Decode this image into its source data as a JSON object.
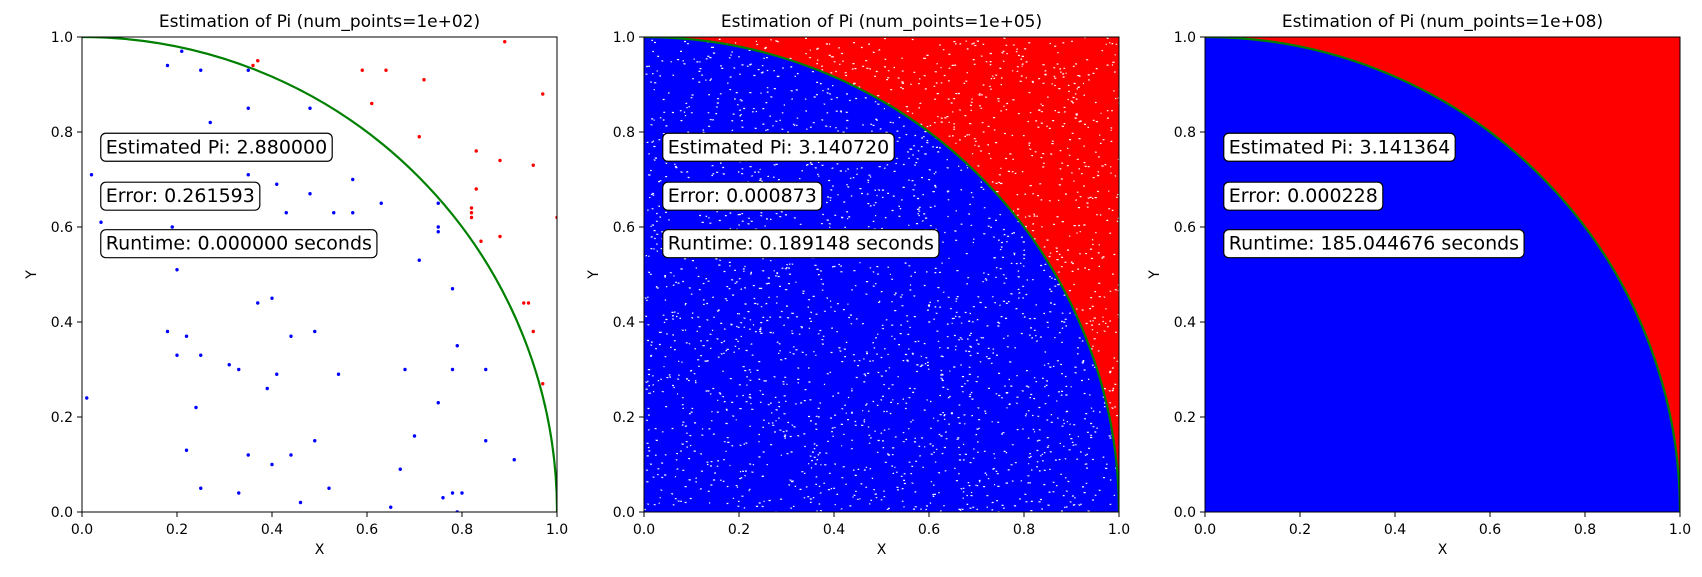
{
  "chart_data": [
    {
      "type": "scatter",
      "title": "Estimation of Pi (num_points=1e+02)",
      "xlabel": "X",
      "ylabel": "Y",
      "xlim": [
        0,
        1
      ],
      "ylim": [
        0,
        1
      ],
      "xticks": [
        "0.0",
        "0.2",
        "0.4",
        "0.6",
        "0.8",
        "1.0"
      ],
      "yticks": [
        "0.0",
        "0.2",
        "0.4",
        "0.6",
        "0.8",
        "1.0"
      ],
      "grid": false,
      "boundary_curve": "quarter circle x^2 + y^2 = 1",
      "colors": {
        "inside": "#0000ff",
        "outside": "#ff0000",
        "curve": "#008000"
      },
      "annotations": [
        "Estimated Pi: 2.880000",
        "Error: 0.261593",
        "Runtime: 0.000000 seconds"
      ],
      "series": [
        {
          "color": "#0000ff",
          "points": [
            [
              0.02,
              0.71
            ],
            [
              0.04,
              0.61
            ],
            [
              0.01,
              0.24
            ],
            [
              0.18,
              0.94
            ],
            [
              0.21,
              0.97
            ],
            [
              0.25,
              0.93
            ],
            [
              0.27,
              0.82
            ],
            [
              0.35,
              0.93
            ],
            [
              0.35,
              0.85
            ],
            [
              0.48,
              0.85
            ],
            [
              0.35,
              0.71
            ],
            [
              0.41,
              0.69
            ],
            [
              0.43,
              0.63
            ],
            [
              0.48,
              0.67
            ],
            [
              0.57,
              0.7
            ],
            [
              0.57,
              0.63
            ],
            [
              0.63,
              0.65
            ],
            [
              0.53,
              0.63
            ],
            [
              0.19,
              0.6
            ],
            [
              0.2,
              0.51
            ],
            [
              0.18,
              0.38
            ],
            [
              0.22,
              0.37
            ],
            [
              0.2,
              0.33
            ],
            [
              0.25,
              0.33
            ],
            [
              0.31,
              0.31
            ],
            [
              0.33,
              0.3
            ],
            [
              0.37,
              0.44
            ],
            [
              0.4,
              0.45
            ],
            [
              0.44,
              0.37
            ],
            [
              0.49,
              0.38
            ],
            [
              0.39,
              0.26
            ],
            [
              0.41,
              0.29
            ],
            [
              0.54,
              0.29
            ],
            [
              0.24,
              0.22
            ],
            [
              0.22,
              0.13
            ],
            [
              0.35,
              0.12
            ],
            [
              0.4,
              0.1
            ],
            [
              0.44,
              0.12
            ],
            [
              0.49,
              0.15
            ],
            [
              0.25,
              0.05
            ],
            [
              0.33,
              0.04
            ],
            [
              0.46,
              0.02
            ],
            [
              0.52,
              0.05
            ],
            [
              0.65,
              0.01
            ],
            [
              0.67,
              0.09
            ],
            [
              0.68,
              0.3
            ],
            [
              0.7,
              0.16
            ],
            [
              0.71,
              0.53
            ],
            [
              0.75,
              0.65
            ],
            [
              0.75,
              0.6
            ],
            [
              0.75,
              0.59
            ],
            [
              0.75,
              0.23
            ],
            [
              0.76,
              0.03
            ],
            [
              0.78,
              0.47
            ],
            [
              0.79,
              0.35
            ],
            [
              0.78,
              0.3
            ],
            [
              0.78,
              0.04
            ],
            [
              0.8,
              0.04
            ],
            [
              0.79,
              0.0
            ],
            [
              0.85,
              0.3
            ],
            [
              0.85,
              0.15
            ],
            [
              0.91,
              0.11
            ]
          ]
        },
        {
          "color": "#ff0000",
          "points": [
            [
              0.37,
              0.95
            ],
            [
              0.36,
              0.94
            ],
            [
              0.59,
              0.93
            ],
            [
              0.64,
              0.93
            ],
            [
              0.72,
              0.91
            ],
            [
              0.61,
              0.86
            ],
            [
              0.71,
              0.79
            ],
            [
              0.83,
              0.76
            ],
            [
              0.89,
              0.99
            ],
            [
              0.97,
              0.88
            ],
            [
              0.88,
              0.74
            ],
            [
              0.95,
              0.73
            ],
            [
              0.83,
              0.68
            ],
            [
              0.82,
              0.64
            ],
            [
              0.82,
              0.63
            ],
            [
              0.82,
              0.62
            ],
            [
              0.84,
              0.57
            ],
            [
              0.88,
              0.58
            ],
            [
              0.93,
              0.44
            ],
            [
              0.94,
              0.44
            ],
            [
              0.95,
              0.38
            ],
            [
              0.97,
              0.27
            ],
            [
              1.0,
              0.62
            ]
          ]
        }
      ]
    },
    {
      "type": "scatter",
      "title": "Estimation of Pi (num_points=1e+05)",
      "xlabel": "X",
      "ylabel": "Y",
      "xlim": [
        0,
        1
      ],
      "ylim": [
        0,
        1
      ],
      "xticks": [
        "0.0",
        "0.2",
        "0.4",
        "0.6",
        "0.8",
        "1.0"
      ],
      "yticks": [
        "0.0",
        "0.2",
        "0.4",
        "0.6",
        "0.8",
        "1.0"
      ],
      "grid": false,
      "boundary_curve": "quarter circle x^2 + y^2 = 1",
      "colors": {
        "inside": "#0000ff",
        "outside": "#ff0000",
        "curve": "#008000"
      },
      "rendering": "dense uniform random points; inside quarter circle blue, outside red",
      "annotations": [
        "Estimated Pi: 3.140720",
        "Error: 0.000873",
        "Runtime: 0.189148 seconds"
      ]
    },
    {
      "type": "scatter",
      "title": "Estimation of Pi (num_points=1e+08)",
      "xlabel": "X",
      "ylabel": "Y",
      "xlim": [
        0,
        1
      ],
      "ylim": [
        0,
        1
      ],
      "xticks": [
        "0.0",
        "0.2",
        "0.4",
        "0.6",
        "0.8",
        "1.0"
      ],
      "yticks": [
        "0.0",
        "0.2",
        "0.4",
        "0.6",
        "0.8",
        "1.0"
      ],
      "grid": false,
      "boundary_curve": "quarter circle x^2 + y^2 = 1",
      "colors": {
        "inside": "#0000ff",
        "outside": "#ff0000",
        "curve": "#008000"
      },
      "rendering": "fully saturated; inside quarter circle solid blue, outside solid red",
      "annotations": [
        "Estimated Pi: 3.141364",
        "Error: 0.000228",
        "Runtime: 185.044676 seconds"
      ]
    }
  ]
}
